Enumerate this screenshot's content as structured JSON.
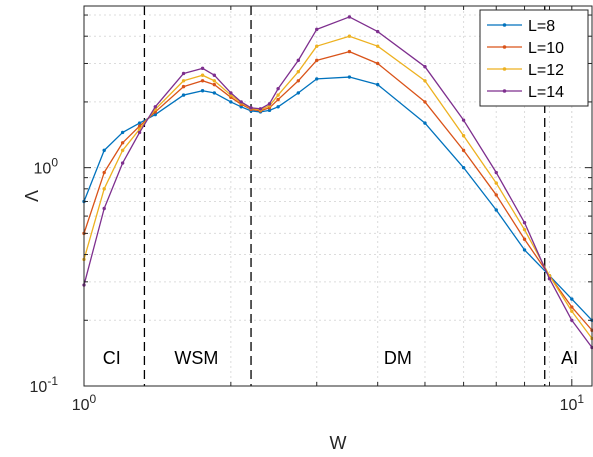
{
  "chart_data": {
    "type": "line",
    "title": "",
    "xlabel": "W",
    "ylabel": "Λ",
    "xscale": "log",
    "yscale": "log",
    "xlim": [
      1,
      11
    ],
    "ylim": [
      0.1,
      5.5
    ],
    "grid": true,
    "legend_position": "top-right",
    "x_ticks": [
      {
        "value": 1,
        "base": "10",
        "exp": "0"
      },
      {
        "value": 10,
        "base": "10",
        "exp": "1"
      }
    ],
    "y_ticks": [
      {
        "value": 0.1,
        "base": "10",
        "exp": "-1"
      },
      {
        "value": 1,
        "base": "10",
        "exp": "0"
      }
    ],
    "boundaries": [
      1.33,
      2.2,
      8.8
    ],
    "regions": [
      {
        "label": "CI",
        "x": 1.14
      },
      {
        "label": "WSM",
        "x": 1.7
      },
      {
        "label": "DM",
        "x": 4.4
      },
      {
        "label": "AI",
        "x": 9.9
      }
    ],
    "series": [
      {
        "name": "L=8",
        "color": "#0072BD",
        "x": [
          1.0,
          1.1,
          1.2,
          1.3,
          1.4,
          1.6,
          1.75,
          1.85,
          2.0,
          2.1,
          2.2,
          2.3,
          2.4,
          2.5,
          2.75,
          3.0,
          3.5,
          4.0,
          5.0,
          6.0,
          7.0,
          8.0,
          9.0,
          10.0,
          11.0
        ],
        "y": [
          0.7,
          1.2,
          1.45,
          1.6,
          1.75,
          2.15,
          2.25,
          2.2,
          2.0,
          1.9,
          1.82,
          1.8,
          1.83,
          1.9,
          2.2,
          2.55,
          2.6,
          2.4,
          1.6,
          1.0,
          0.64,
          0.42,
          0.32,
          0.25,
          0.2
        ]
      },
      {
        "name": "L=10",
        "color": "#D95319",
        "x": [
          1.0,
          1.1,
          1.2,
          1.3,
          1.4,
          1.6,
          1.75,
          1.85,
          2.0,
          2.1,
          2.2,
          2.3,
          2.4,
          2.5,
          2.75,
          3.0,
          3.5,
          4.0,
          5.0,
          6.0,
          7.0,
          8.0,
          9.0,
          10.0,
          11.0
        ],
        "y": [
          0.5,
          0.95,
          1.3,
          1.55,
          1.8,
          2.35,
          2.5,
          2.4,
          2.1,
          1.95,
          1.85,
          1.82,
          1.88,
          2.05,
          2.5,
          3.1,
          3.4,
          3.0,
          2.0,
          1.2,
          0.75,
          0.47,
          0.32,
          0.23,
          0.18
        ]
      },
      {
        "name": "L=12",
        "color": "#EDB120",
        "x": [
          1.0,
          1.1,
          1.2,
          1.3,
          1.4,
          1.6,
          1.75,
          1.85,
          2.0,
          2.1,
          2.2,
          2.3,
          2.4,
          2.5,
          2.75,
          3.0,
          3.5,
          4.0,
          5.0,
          6.0,
          7.0,
          8.0,
          9.0,
          10.0,
          11.0
        ],
        "y": [
          0.38,
          0.8,
          1.2,
          1.5,
          1.85,
          2.5,
          2.65,
          2.5,
          2.15,
          1.98,
          1.87,
          1.84,
          1.92,
          2.15,
          2.75,
          3.6,
          4.0,
          3.6,
          2.5,
          1.4,
          0.85,
          0.52,
          0.32,
          0.22,
          0.165
        ]
      },
      {
        "name": "L=14",
        "color": "#7E2F8E",
        "x": [
          1.0,
          1.1,
          1.2,
          1.3,
          1.4,
          1.6,
          1.75,
          1.85,
          2.0,
          2.1,
          2.2,
          2.3,
          2.4,
          2.5,
          2.75,
          3.0,
          3.5,
          4.0,
          5.0,
          6.0,
          7.0,
          8.0,
          9.0,
          10.0,
          11.0
        ],
        "y": [
          0.29,
          0.65,
          1.05,
          1.45,
          1.9,
          2.7,
          2.85,
          2.65,
          2.2,
          2.0,
          1.88,
          1.86,
          1.96,
          2.3,
          3.1,
          4.3,
          4.9,
          4.2,
          2.9,
          1.65,
          0.95,
          0.56,
          0.31,
          0.2,
          0.15
        ]
      }
    ]
  }
}
